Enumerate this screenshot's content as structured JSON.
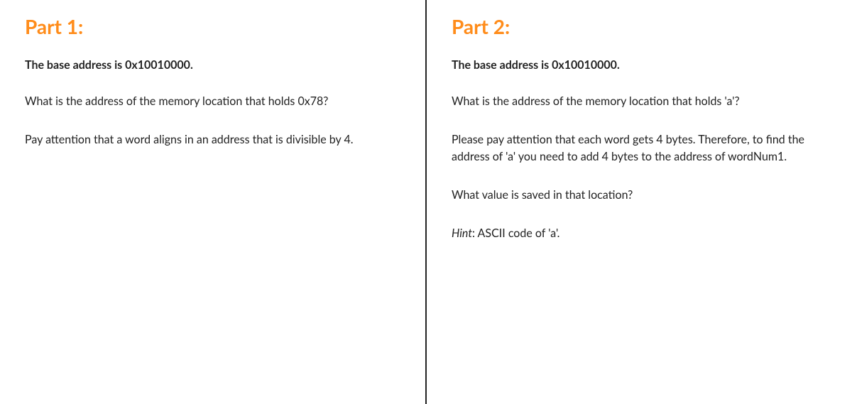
{
  "accent_color": "#ff8c1a",
  "text_color": "#222222",
  "background_color": "#ffffff",
  "divider_color": "#222222",
  "part1": {
    "heading": "Part 1:",
    "base_address": "The base address is 0x10010000.",
    "question": "What is the address of the memory location that holds 0x78?",
    "note": "Pay attention that a word aligns in an address that is divisible by 4."
  },
  "part2": {
    "heading": "Part 2:",
    "base_address": "The base address is 0x10010000.",
    "question1": "What is the address of the memory location that holds 'a'?",
    "note": "Please pay attention that each word gets 4 bytes. Therefore, to find the address of 'a' you need to add 4 bytes to the address of wordNum1.",
    "question2": "What value is saved in that location?",
    "hint_label": "Hint",
    "hint_text": ": ASCII code of 'a'."
  }
}
